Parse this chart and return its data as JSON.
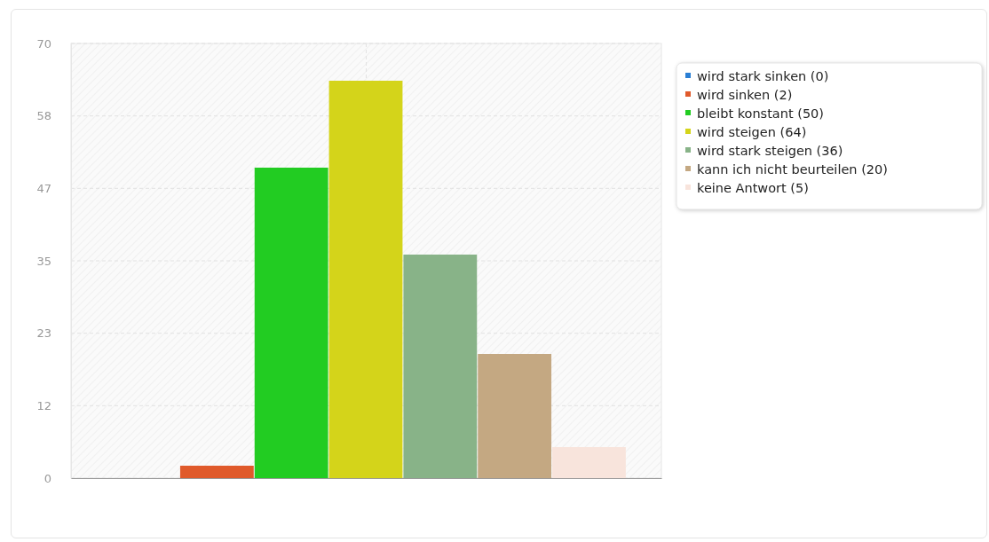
{
  "chart_data": {
    "type": "bar",
    "categories": [
      null
    ],
    "series": [
      {
        "name": "wird stark sinken (0)",
        "color": "#2a7fd4",
        "values": [
          0
        ]
      },
      {
        "name": "wird sinken (2)",
        "color": "#e05a2b",
        "values": [
          2
        ]
      },
      {
        "name": "bleibt konstant (50)",
        "color": "#22cc22",
        "values": [
          50
        ]
      },
      {
        "name": "wird steigen (64)",
        "color": "#d4d41a",
        "values": [
          64
        ]
      },
      {
        "name": "wird stark steigen (36)",
        "color": "#88b388",
        "values": [
          36
        ]
      },
      {
        "name": "kann ich nicht beurteilen (20)",
        "color": "#c4a882",
        "values": [
          20
        ]
      },
      {
        "name": "keine Antwort (5)",
        "color": "#f8e4dc",
        "values": [
          5
        ]
      }
    ],
    "ylim": [
      0,
      70
    ],
    "yticks": [
      0,
      {
        "value": 11.67,
        "label": "12"
      },
      {
        "value": 23.33,
        "label": "23"
      },
      35,
      {
        "value": 46.67,
        "label": "47"
      },
      {
        "value": 58.33,
        "label": "58"
      },
      70
    ],
    "grid": true,
    "legend": "top right"
  }
}
